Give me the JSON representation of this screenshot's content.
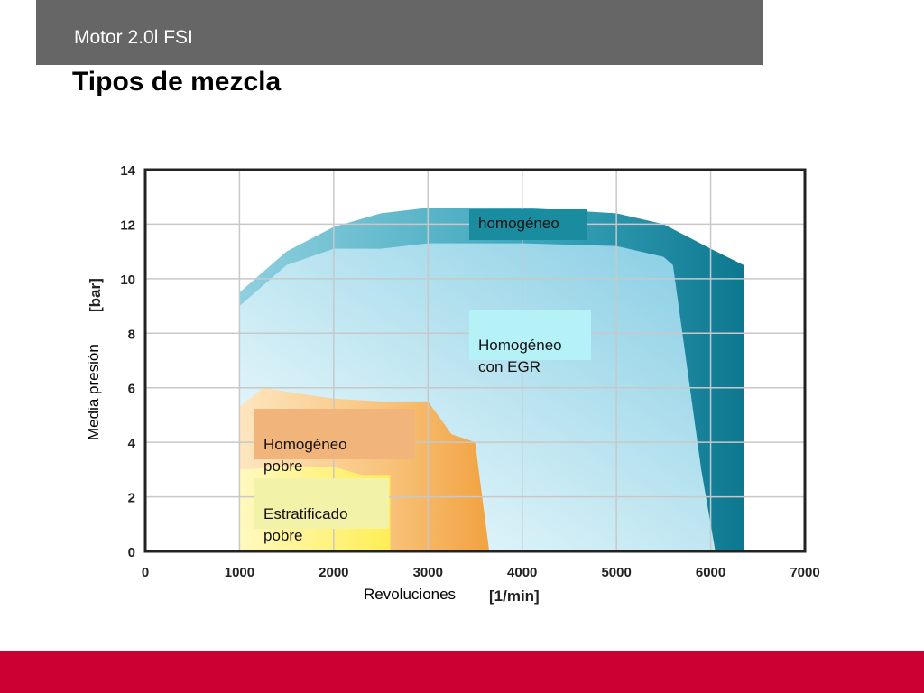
{
  "header": {
    "title": "Motor 2.0l FSI"
  },
  "slide": {
    "title": "Tipos de mezcla"
  },
  "colors": {
    "header_bar": "#666666",
    "bottom_band": "#cc0033"
  },
  "chart_data": {
    "type": "area",
    "xlabel": "Revoluciones",
    "xunit": "[1/min]",
    "ylabel": "Media presión",
    "yunit": "[bar]",
    "xlim": [
      0,
      7000
    ],
    "ylim": [
      0,
      14
    ],
    "xticks": [
      0,
      1000,
      2000,
      3000,
      4000,
      5000,
      6000,
      7000
    ],
    "yticks": [
      0,
      2,
      4,
      6,
      8,
      10,
      12,
      14
    ],
    "grid": true,
    "regions": [
      {
        "name": "homogéneo",
        "color": "#1a8ca0",
        "points": [
          [
            1000,
            0
          ],
          [
            1000,
            9.5
          ],
          [
            1500,
            11.0
          ],
          [
            2000,
            11.9
          ],
          [
            2500,
            12.4
          ],
          [
            3000,
            12.6
          ],
          [
            4000,
            12.6
          ],
          [
            5000,
            12.4
          ],
          [
            5500,
            12.0
          ],
          [
            6000,
            11.1
          ],
          [
            6350,
            10.5
          ],
          [
            6350,
            0
          ]
        ]
      },
      {
        "name": "Homogéneo con EGR",
        "color": "#9ad6e8",
        "points": [
          [
            1000,
            0
          ],
          [
            1000,
            9.0
          ],
          [
            1500,
            10.5
          ],
          [
            2000,
            11.1
          ],
          [
            2500,
            11.1
          ],
          [
            3000,
            11.3
          ],
          [
            4000,
            11.3
          ],
          [
            5000,
            11.2
          ],
          [
            5500,
            10.8
          ],
          [
            5600,
            10.5
          ],
          [
            5700,
            8.0
          ],
          [
            5900,
            3.0
          ],
          [
            6050,
            0
          ]
        ]
      },
      {
        "name": "Homogéneo pobre",
        "color": "#f5b25a",
        "points": [
          [
            1000,
            0
          ],
          [
            1000,
            5.3
          ],
          [
            1250,
            6.0
          ],
          [
            1600,
            5.8
          ],
          [
            2000,
            5.6
          ],
          [
            2500,
            5.5
          ],
          [
            3000,
            5.5
          ],
          [
            3250,
            4.3
          ],
          [
            3500,
            4.0
          ],
          [
            3650,
            0
          ]
        ]
      },
      {
        "name": "Estratificado pobre",
        "color": "#fff470",
        "points": [
          [
            1000,
            0
          ],
          [
            1000,
            3.0
          ],
          [
            1500,
            3.1
          ],
          [
            2000,
            3.1
          ],
          [
            2300,
            2.8
          ],
          [
            2600,
            2.8
          ],
          [
            2600,
            0
          ]
        ]
      }
    ],
    "labels": [
      {
        "text": "homogéneo"
      },
      {
        "text": "Homogéneo\ncon EGR"
      },
      {
        "text": "Homogéneo\npobre"
      },
      {
        "text": "Estratificado\npobre"
      }
    ]
  }
}
